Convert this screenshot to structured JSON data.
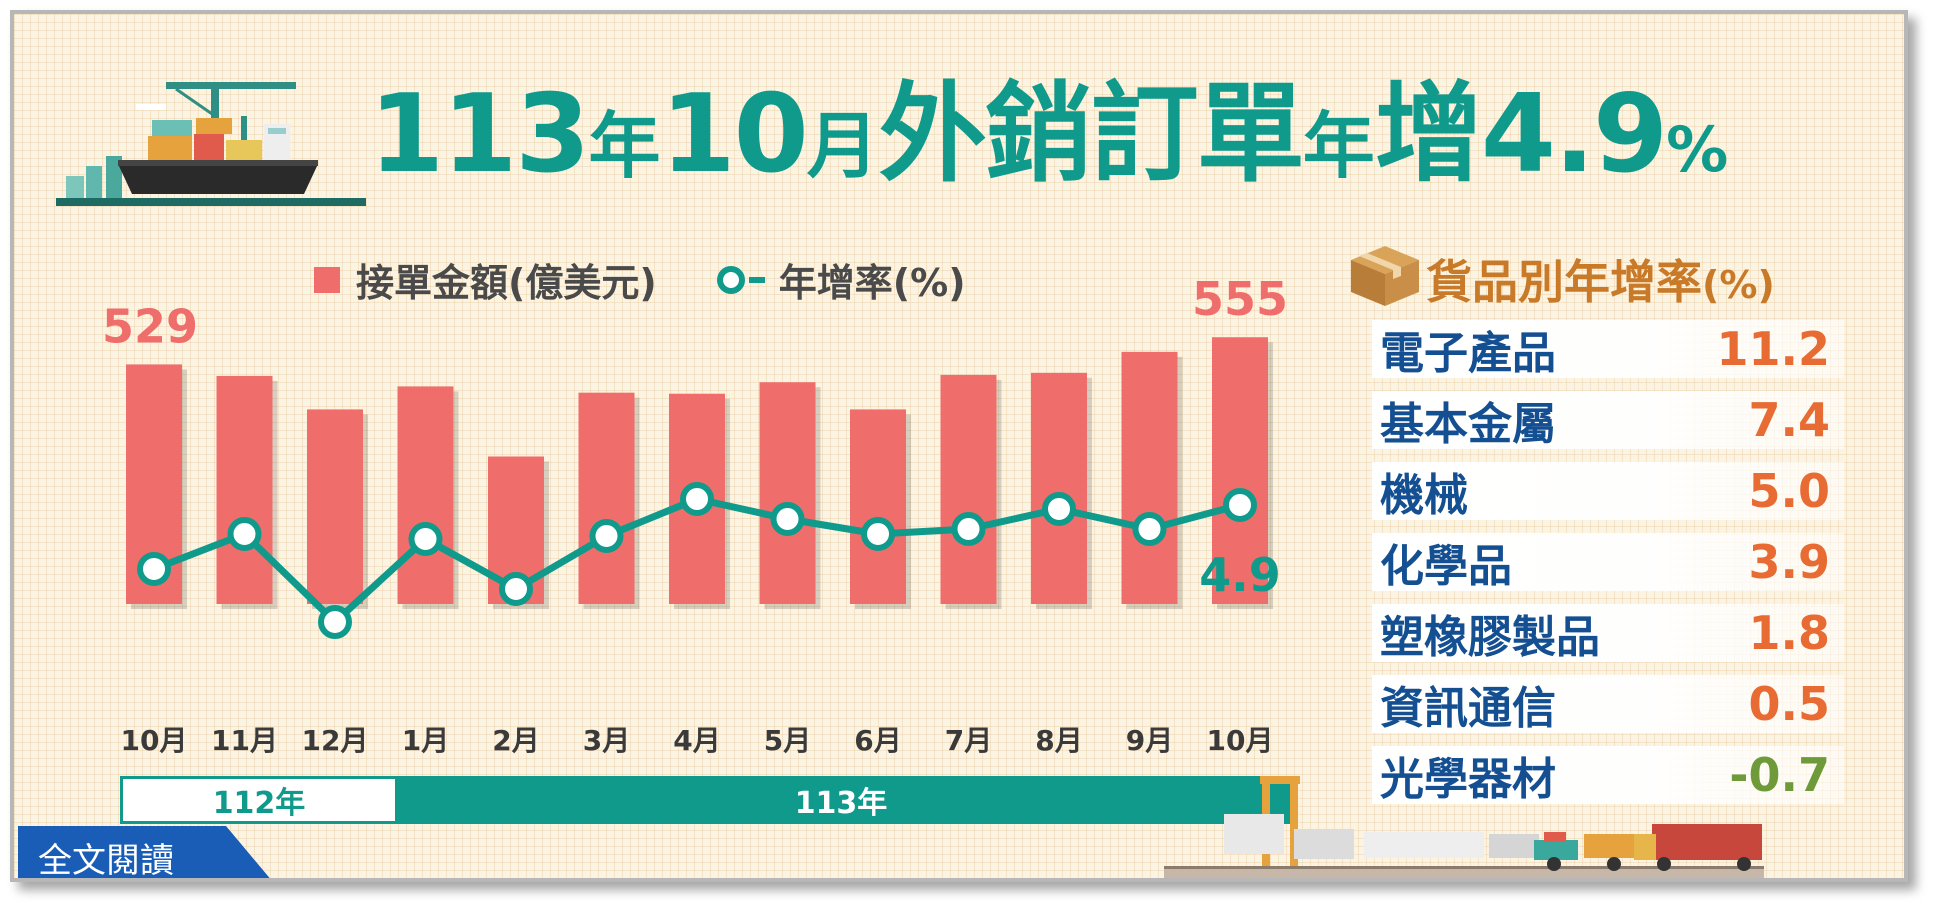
{
  "headline": {
    "p1": "113",
    "p2": "年",
    "p3": "10",
    "p4": "月",
    "p5": "外銷訂單",
    "p6": "年",
    "p7": "增",
    "p8": "4.9",
    "p9": "%"
  },
  "legend": {
    "bar_label": "接單金額(億美元)",
    "line_label": "年增率(%)"
  },
  "timeline": {
    "year_112": "112年",
    "year_113": "113年"
  },
  "read_full_label": "全文閱讀",
  "categories_panel": {
    "title": "貨品別年增率",
    "unit": "(%)",
    "items": [
      {
        "name": "電子產品",
        "value": "11.2"
      },
      {
        "name": "基本金屬",
        "value": "7.4"
      },
      {
        "name": "機械",
        "value": "5.0"
      },
      {
        "name": "化學品",
        "value": "3.9"
      },
      {
        "name": "塑橡膠製品",
        "value": "1.8"
      },
      {
        "name": "資訊通信",
        "value": "0.5"
      },
      {
        "name": "光學器材",
        "value": "-0.7"
      }
    ]
  },
  "colors": {
    "teal": "#0f9a8c",
    "bar": "#ef6d6a",
    "label_red": "#ef6d6a",
    "cat_name": "#144f92",
    "cat_value": "#e86b33",
    "cat_negative": "#6e9a3a",
    "title_orange": "#c87a28",
    "button_blue": "#1a5db6"
  },
  "chart_data": {
    "type": "bar",
    "categories": [
      "10月",
      "11月",
      "12月",
      "1月",
      "2月",
      "3月",
      "4月",
      "5月",
      "6月",
      "7月",
      "8月",
      "9月",
      "10月"
    ],
    "series": [
      {
        "name": "接單金額(億美元)",
        "type": "bar",
        "values": [
          529,
          518,
          486,
          508,
          441,
          502,
          501,
          512,
          486,
          519,
          521,
          541,
          555
        ],
        "data_labels": [
          "529",
          null,
          null,
          null,
          null,
          null,
          null,
          null,
          null,
          null,
          null,
          null,
          "555"
        ]
      },
      {
        "name": "年增率(%)",
        "type": "line",
        "values": [
          -1.5,
          2.0,
          -6.8,
          1.5,
          -3.5,
          1.8,
          5.5,
          3.5,
          2.0,
          2.5,
          4.5,
          2.5,
          4.9
        ],
        "data_labels": [
          null,
          null,
          null,
          null,
          null,
          null,
          null,
          null,
          null,
          null,
          null,
          null,
          "4.9"
        ]
      }
    ],
    "ylim_bar": [
      300,
      560
    ],
    "ylim_line": [
      -16,
      9
    ],
    "grid": false
  }
}
